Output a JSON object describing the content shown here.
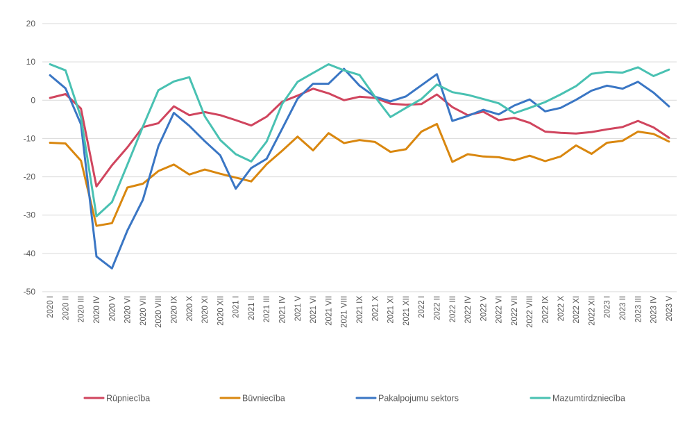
{
  "chart_data": {
    "type": "line",
    "title": "",
    "xlabel": "",
    "ylabel": "",
    "ylim": [
      -50,
      20
    ],
    "yticks": [
      20,
      10,
      0,
      -10,
      -20,
      -30,
      -40,
      -50
    ],
    "grid": true,
    "legend_position": "bottom",
    "categories": [
      "2020 I",
      "2020 II",
      "2020 III",
      "2020 IV",
      "2020 V",
      "2020 VI",
      "2020 VII",
      "2020 VIII",
      "2020 IX",
      "2020 X",
      "2020 XI",
      "2020 XII",
      "2021 I",
      "2021 II",
      "2021 III",
      "2021 IV",
      "2021 V",
      "2021 VI",
      "2021 VII",
      "2021 VIII",
      "2021 IX",
      "2021 X",
      "2021 XI",
      "2021 XII",
      "2022 I",
      "2022 II",
      "2022 III",
      "2022 IV",
      "2022 V",
      "2022 VI",
      "2022 VII",
      "2022 VIII",
      "2022 IX",
      "2022 X",
      "2022 XI",
      "2022 XII",
      "2023 I",
      "2023 II",
      "2023 III",
      "2023 IV",
      "2023 V"
    ],
    "series": [
      {
        "name": "Rūpniecība",
        "color": "#d0455e",
        "values": [
          0.6,
          1.6,
          -2.2,
          -22.5,
          -17,
          -12.3,
          -7,
          -6,
          -1.6,
          -3.9,
          -3.1,
          -3.9,
          -5.2,
          -6.6,
          -4.3,
          -0.4,
          1.2,
          3,
          1.8,
          0,
          0.9,
          0.6,
          -0.9,
          -1.2,
          -1,
          1.5,
          -1.8,
          -3.9,
          -3,
          -5.2,
          -4.6,
          -5.9,
          -8.2,
          -8.5,
          -8.7,
          -8.3,
          -7.6,
          -7,
          -5.4,
          -7.1,
          -9.8
        ]
      },
      {
        "name": "Būvniecība",
        "color": "#d9870f",
        "values": [
          -11.1,
          -11.3,
          -15.8,
          -32.8,
          -32.1,
          -22.8,
          -21.8,
          -18.5,
          -16.8,
          -19.4,
          -18.1,
          -19.2,
          -20.2,
          -21.2,
          -16.7,
          -13.2,
          -9.5,
          -13.1,
          -8.6,
          -11.2,
          -10.4,
          -10.9,
          -13.5,
          -12.8,
          -8.2,
          -6.2,
          -16.1,
          -14.1,
          -14.7,
          -14.9,
          -15.7,
          -14.5,
          -15.9,
          -14.7,
          -11.8,
          -14,
          -11.1,
          -10.6,
          -8.2,
          -8.8,
          -10.8
        ]
      },
      {
        "name": "Pakalpojumu sektors",
        "color": "#3a76c4",
        "values": [
          6.5,
          3.1,
          -6.3,
          -40.8,
          -43.9,
          -34,
          -26,
          -12,
          -3.3,
          -6.7,
          -10.7,
          -14.4,
          -23.1,
          -17.7,
          -15.3,
          -7.5,
          0.4,
          4.3,
          4.3,
          8.2,
          3.8,
          0.9,
          -0.3,
          1,
          3.9,
          6.8,
          -5.4,
          -4.1,
          -2.5,
          -3.7,
          -1.4,
          0.2,
          -2.9,
          -2,
          0.1,
          2.5,
          3.8,
          3,
          4.8,
          2,
          -1.6
        ]
      },
      {
        "name": "Mazumtirdzniecība",
        "color": "#49c1b2",
        "values": [
          9.4,
          7.8,
          -4.5,
          -30.3,
          -26.6,
          -16.8,
          -6.9,
          2.6,
          4.9,
          6,
          -4.2,
          -10.4,
          -14.1,
          -16,
          -10.8,
          -1,
          4.8,
          7.1,
          9.4,
          7.8,
          6.6,
          0.9,
          -4.4,
          -2,
          0.3,
          4.1,
          2.1,
          1.4,
          0.3,
          -0.8,
          -3.4,
          -2,
          -0.5,
          1.5,
          3.7,
          6.9,
          7.4,
          7.2,
          8.6,
          6.3,
          8
        ]
      }
    ]
  }
}
